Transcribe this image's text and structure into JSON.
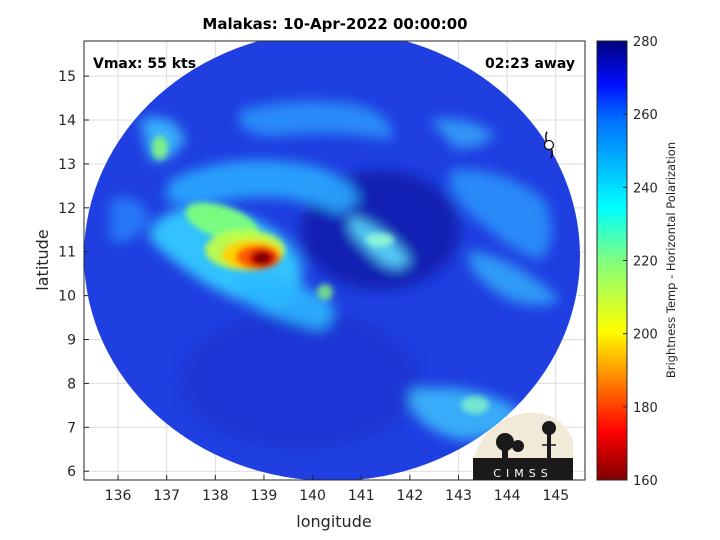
{
  "title": "Malakas: 10-Apr-2022 00:00:00",
  "annotations": {
    "vmax": "Vmax: 55 kts",
    "away": "02:23 away"
  },
  "axes": {
    "xlabel": "longitude",
    "ylabel": "latitude",
    "xlim": [
      135.3,
      145.6
    ],
    "ylim": [
      5.8,
      15.8
    ],
    "xticks": [
      "136",
      "137",
      "138",
      "139",
      "140",
      "141",
      "142",
      "143",
      "144",
      "145"
    ],
    "yticks": [
      "6",
      "7",
      "8",
      "9",
      "10",
      "11",
      "12",
      "13",
      "14",
      "15"
    ],
    "grid": true
  },
  "colorbar": {
    "label": "Brightness Temp - Horizontal Polarization",
    "range": [
      160,
      280
    ],
    "ticks": [
      "160",
      "180",
      "200",
      "220",
      "240",
      "260",
      "280"
    ],
    "colormap": "jet"
  },
  "storm_center": {
    "lon": 138.9,
    "lat": 10.9
  },
  "logo": {
    "text": "CIMSS"
  },
  "icons": {
    "marker": "hurricane-symbol-icon",
    "logo": "cimss-logo-icon"
  },
  "colors": {
    "background_field": "#1a3fd9",
    "core": "#7a0000"
  }
}
